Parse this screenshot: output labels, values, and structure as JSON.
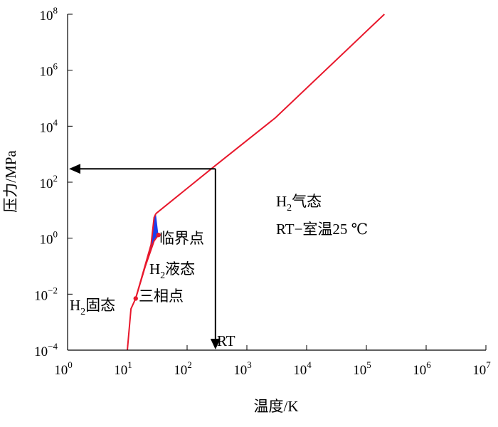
{
  "chart_data": {
    "type": "line",
    "xlabel": "温度/K",
    "ylabel": "压力/MPa",
    "x_scale": "log",
    "y_scale": "log",
    "xlim": [
      1,
      10000000
    ],
    "ylim": [
      0.0001,
      100000000
    ],
    "x_ticks": [
      {
        "base": "10",
        "exp": "0",
        "value": 1
      },
      {
        "base": "10",
        "exp": "1",
        "value": 10
      },
      {
        "base": "10",
        "exp": "2",
        "value": 100
      },
      {
        "base": "10",
        "exp": "3",
        "value": 1000
      },
      {
        "base": "10",
        "exp": "4",
        "value": 10000
      },
      {
        "base": "10",
        "exp": "5",
        "value": 100000
      },
      {
        "base": "10",
        "exp": "6",
        "value": 1000000
      },
      {
        "base": "10",
        "exp": "7",
        "value": 10000000
      }
    ],
    "y_ticks": [
      {
        "base": "10",
        "exp": "−4",
        "value": 0.0001
      },
      {
        "base": "10",
        "exp": "−2",
        "value": 0.01
      },
      {
        "base": "10",
        "exp": "0",
        "value": 1
      },
      {
        "base": "10",
        "exp": "2",
        "value": 100
      },
      {
        "base": "10",
        "exp": "4",
        "value": 10000
      },
      {
        "base": "10",
        "exp": "6",
        "value": 1000000
      },
      {
        "base": "10",
        "exp": "8",
        "value": 100000000
      }
    ],
    "curves": {
      "sublimation": [
        [
          10,
          0.0001
        ],
        [
          11.5,
          0.003
        ],
        [
          13.8,
          0.007
        ]
      ],
      "melting_line": [
        [
          13.8,
          0.007
        ],
        [
          25,
          0.6
        ],
        [
          28,
          5.5
        ],
        [
          30,
          7.5
        ]
      ],
      "vaporization": [
        [
          13.8,
          0.007
        ],
        [
          20,
          0.1
        ],
        [
          28,
          0.8
        ],
        [
          33.1,
          1.3
        ]
      ],
      "supercritical": [
        [
          30,
          7.5
        ],
        [
          300,
          400
        ],
        [
          3000,
          20000
        ],
        [
          200000,
          100000000
        ]
      ]
    },
    "points": {
      "triple_point": [
        13.8,
        0.007
      ],
      "critical_point": [
        33.1,
        1.3
      ]
    },
    "room_temperature": {
      "x": 298,
      "y": 300
    },
    "colors": {
      "curve": "#e8182c",
      "liquid_fill": "#1a3ff0",
      "arrow": "#000000"
    }
  },
  "annotations": {
    "gas_h": "H",
    "gas_sub": "2",
    "gas_text": "气态",
    "rt_line": "RT−室温25 ℃",
    "critical_point": "临界点",
    "liquid_h": "H",
    "liquid_sub": "2",
    "liquid_text": "液态",
    "solid_h": "H",
    "solid_sub": "2",
    "solid_text": "固态",
    "triple_point": "三相点",
    "rt_marker": "RT"
  }
}
